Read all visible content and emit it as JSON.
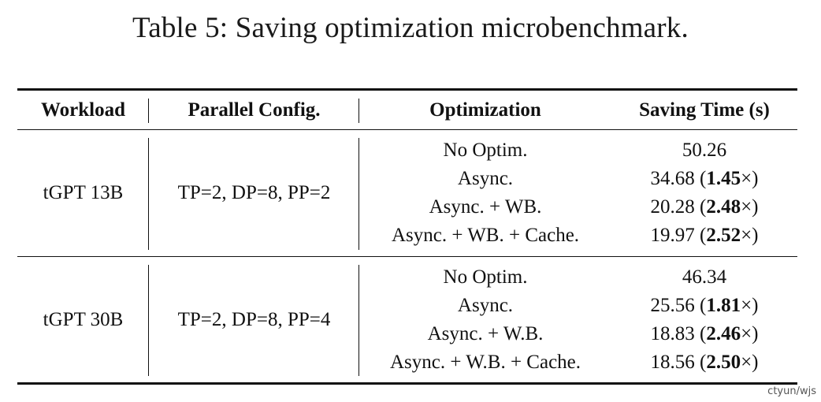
{
  "caption": "Table 5: Saving optimization microbenchmark.",
  "table": {
    "headers": [
      "Workload",
      "Parallel Config.",
      "Optimization",
      "Saving Time (s)"
    ],
    "groups": [
      {
        "workload": "tGPT 13B",
        "parallel_config": "TP=2, DP=8, PP=2",
        "rows": [
          {
            "optimization": "No Optim.",
            "time": "50.26",
            "speedup": ""
          },
          {
            "optimization": "Async.",
            "time": "34.68",
            "speedup": "1.45"
          },
          {
            "optimization": "Async. + WB.",
            "time": "20.28",
            "speedup": "2.48"
          },
          {
            "optimization": "Async. + WB. + Cache.",
            "time": "19.97",
            "speedup": "2.52"
          }
        ]
      },
      {
        "workload": "tGPT 30B",
        "parallel_config": "TP=2, DP=8, PP=4",
        "rows": [
          {
            "optimization": "No Optim.",
            "time": "46.34",
            "speedup": ""
          },
          {
            "optimization": "Async.",
            "time": "25.56",
            "speedup": "1.81"
          },
          {
            "optimization": "Async. + W.B.",
            "time": "18.83",
            "speedup": "2.46"
          },
          {
            "optimization": "Async. + W.B. + Cache.",
            "time": "18.56",
            "speedup": "2.50"
          }
        ]
      }
    ]
  },
  "watermark": "ctyun/wjs"
}
